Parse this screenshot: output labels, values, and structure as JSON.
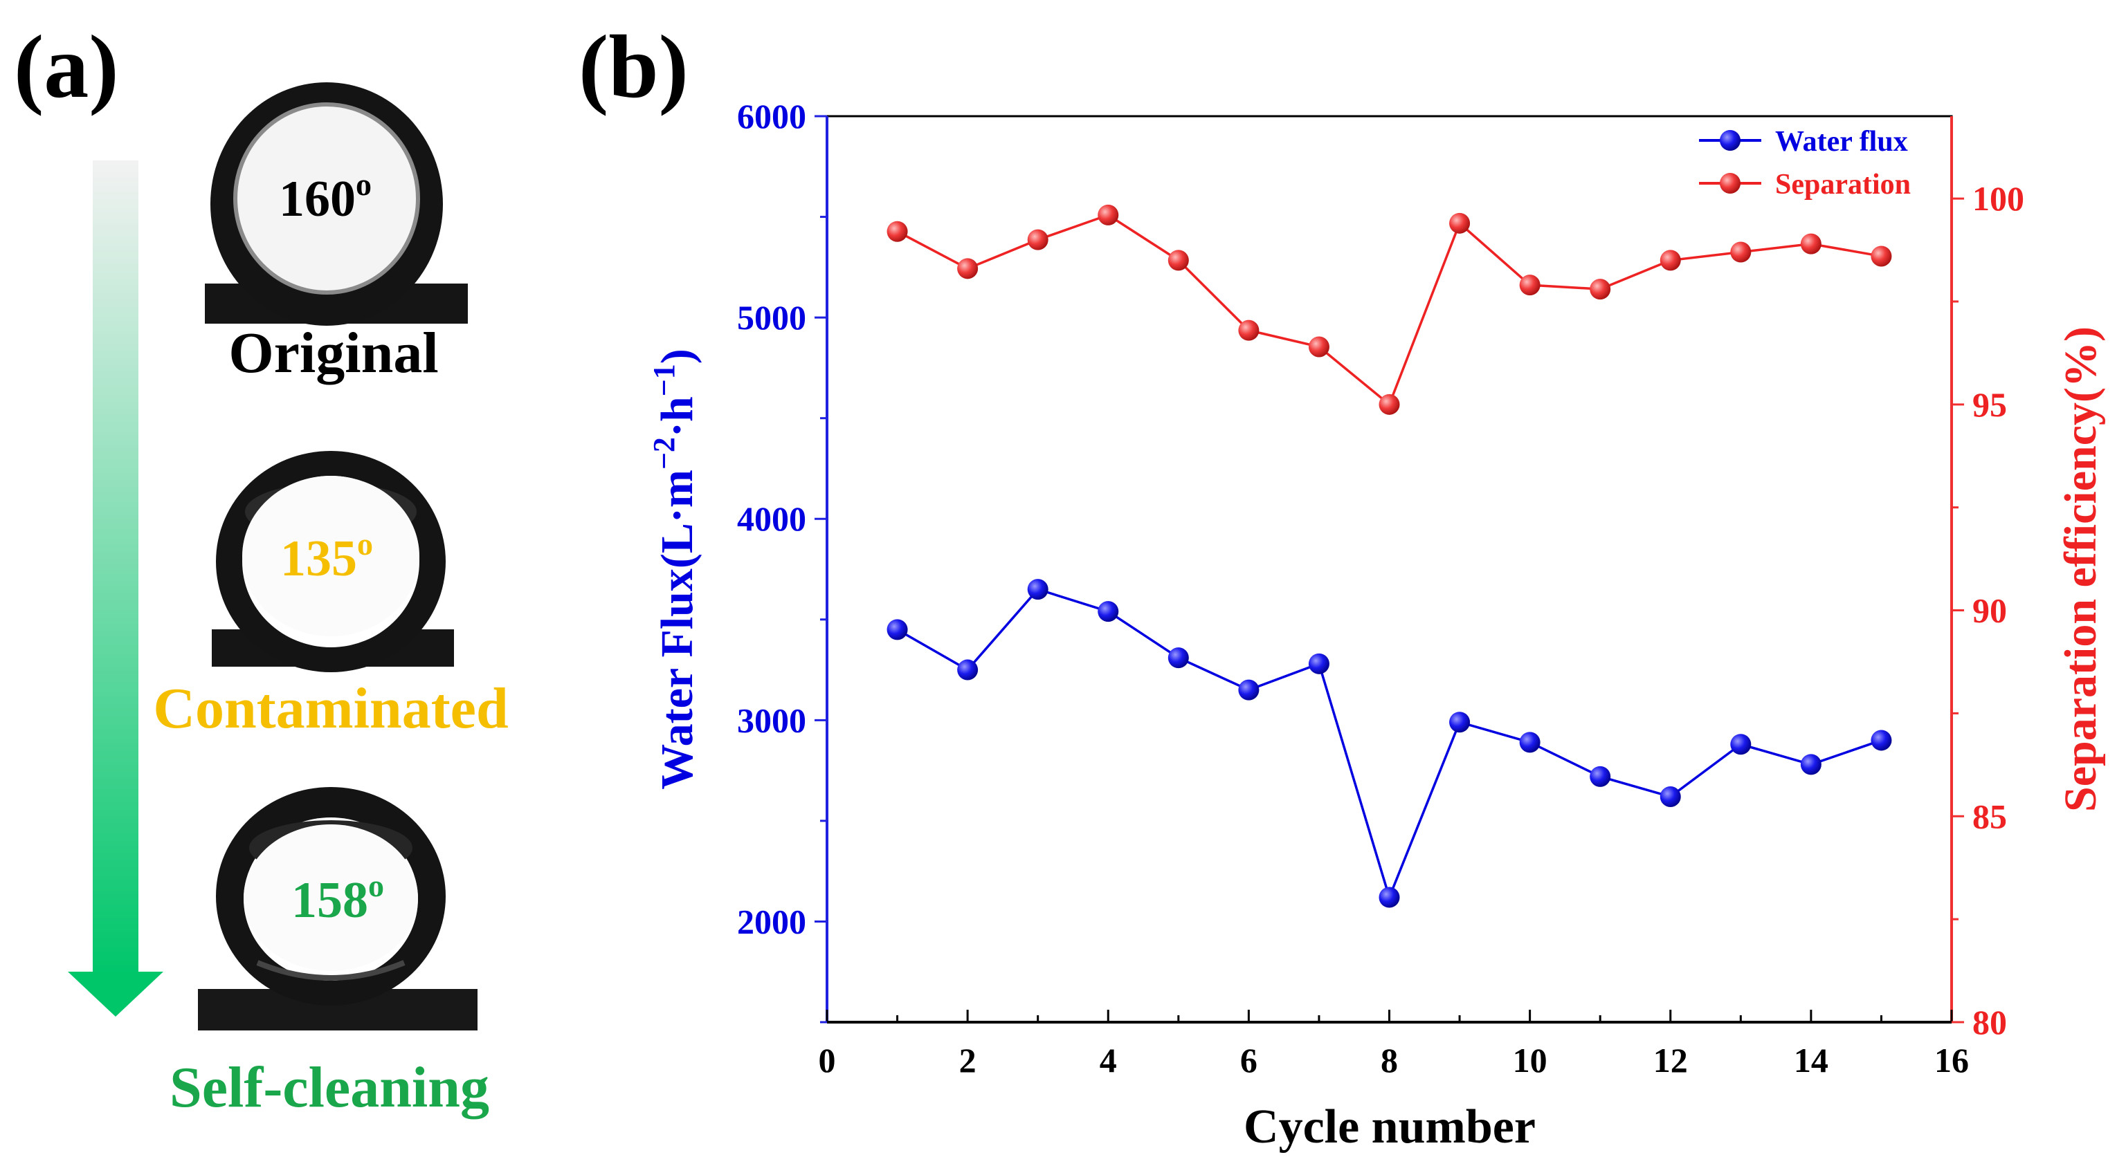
{
  "panel_a": {
    "label": "(a)",
    "stages": [
      {
        "angle": "160",
        "superscript": "o",
        "caption": "Original",
        "color": "#000000"
      },
      {
        "angle": "135",
        "superscript": "o",
        "caption": "Contaminated",
        "color": "#f5bf00"
      },
      {
        "angle": "158",
        "superscript": "o",
        "caption": "Self-cleaning",
        "color": "#1aa64a"
      }
    ],
    "arrow_colors": {
      "top": "#f2f2f2",
      "bottom": "#00c66a"
    }
  },
  "panel_b": {
    "label": "(b)"
  },
  "chart_data": {
    "type": "line",
    "title": "",
    "xlabel": "Cycle number",
    "ylabel_left": "Water Flux(L·m⁻²·h⁻¹)",
    "ylabel_left_parts": {
      "main": "Water Flux(L·m",
      "sup1": "−2",
      "mid": "·h",
      "sup2": "−1",
      "end": ")"
    },
    "ylabel_right": "Separation efficiency(%)",
    "xlim": [
      0,
      16
    ],
    "ylim_left": [
      1500,
      6000
    ],
    "ylim_right": [
      80,
      102
    ],
    "xticks": [
      "0",
      "2",
      "4",
      "6",
      "8",
      "10",
      "12",
      "14",
      "16"
    ],
    "yticks_left": [
      "2000",
      "3000",
      "4000",
      "5000",
      "6000"
    ],
    "yticks_right": [
      "80",
      "85",
      "90",
      "95",
      "100"
    ],
    "x": [
      1,
      2,
      3,
      4,
      5,
      6,
      7,
      8,
      9,
      10,
      11,
      12,
      13,
      14,
      15
    ],
    "series": [
      {
        "name": "Water flux",
        "axis": "left",
        "color": "#0000e0",
        "values": [
          3450,
          3250,
          3650,
          3540,
          3310,
          3150,
          3280,
          2120,
          2990,
          2890,
          2720,
          2620,
          2880,
          2780,
          2900
        ]
      },
      {
        "name": "Separation",
        "axis": "right",
        "color": "#ee2222",
        "values": [
          99.2,
          98.3,
          99.0,
          99.6,
          98.5,
          96.8,
          96.4,
          95.0,
          99.4,
          97.9,
          97.8,
          98.5,
          98.7,
          98.9,
          98.6
        ]
      }
    ],
    "legend": {
      "position": "top-right"
    },
    "grid": false
  }
}
